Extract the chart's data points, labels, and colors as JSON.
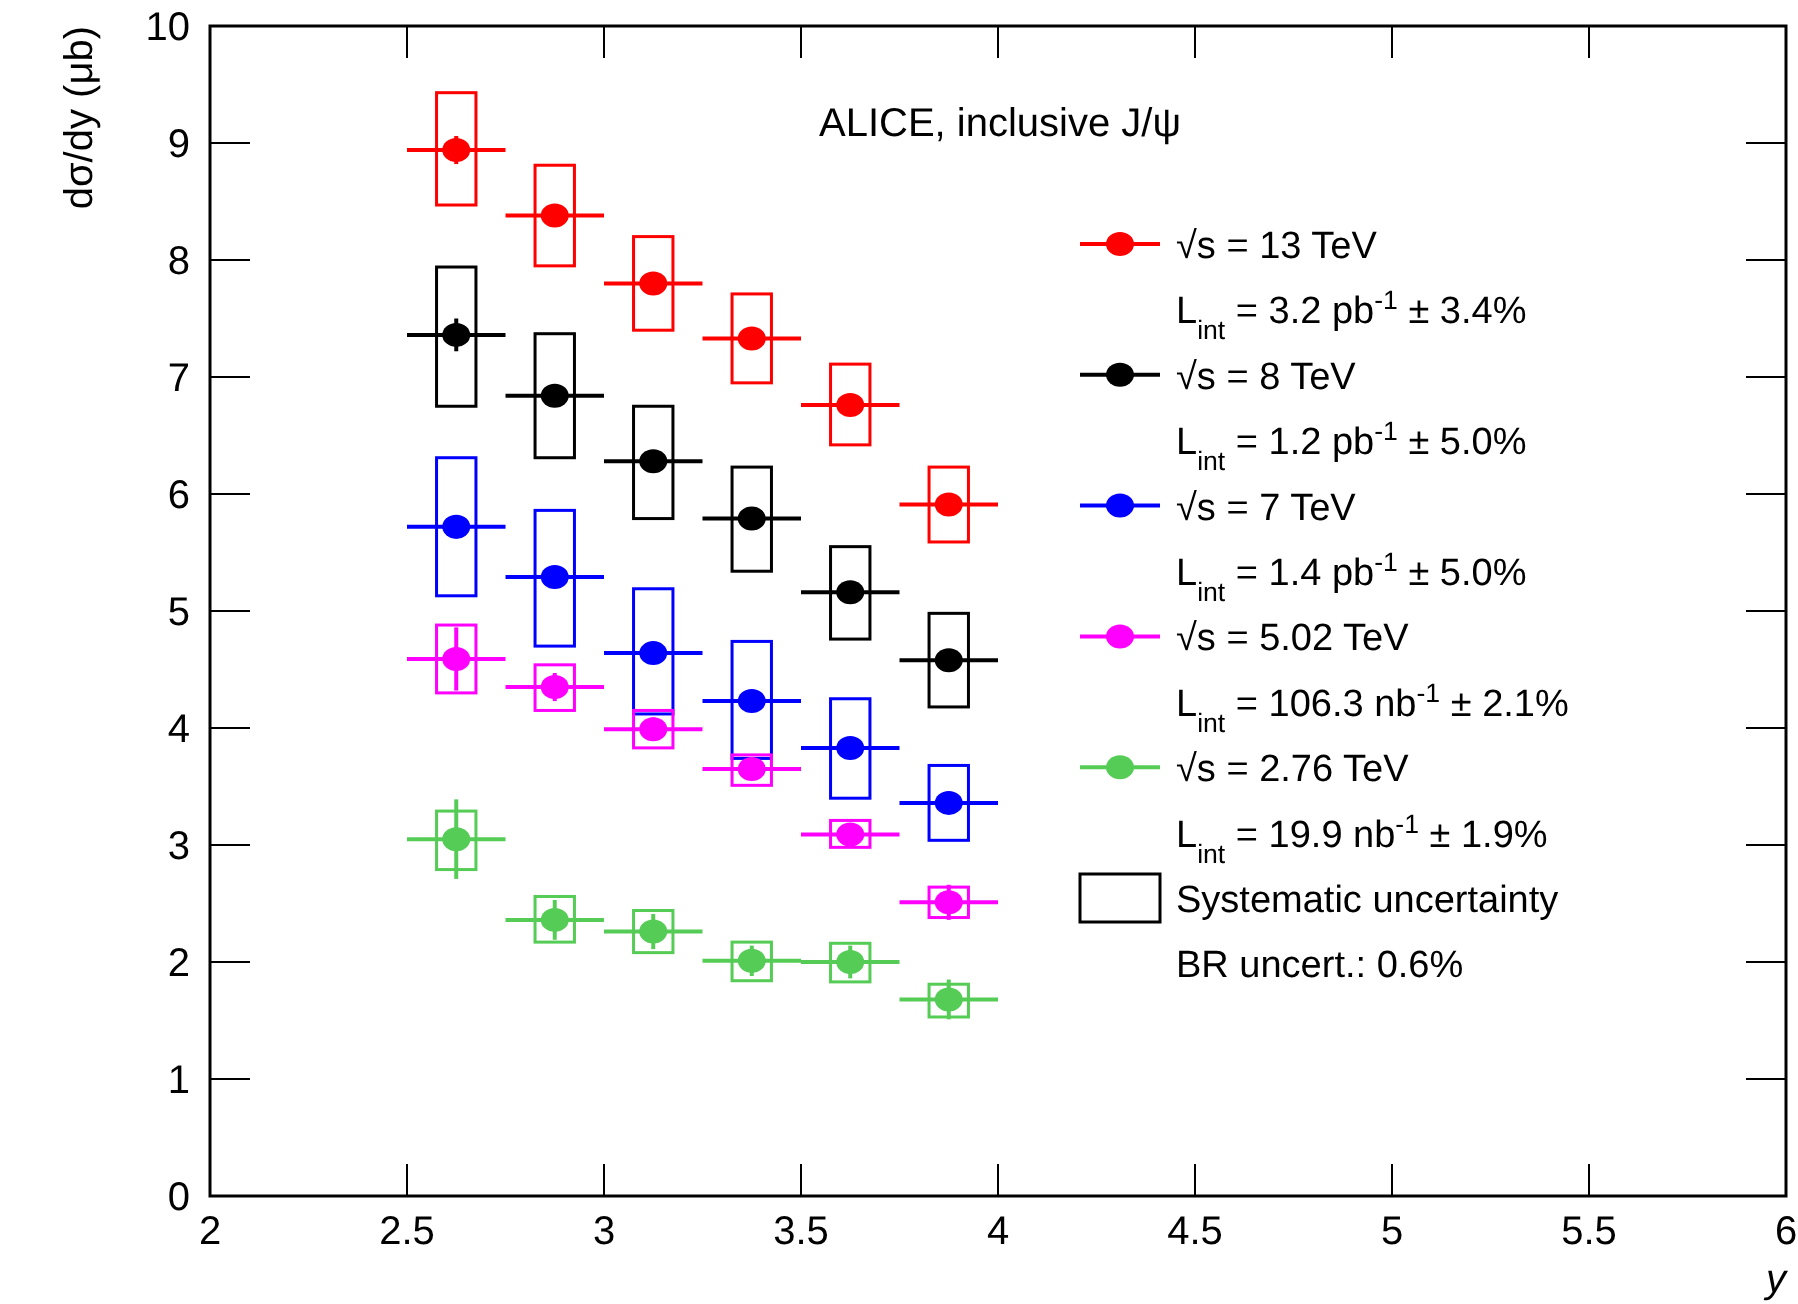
{
  "chart_data": {
    "type": "scatter",
    "title": "ALICE, inclusive J/ψ",
    "xlabel": "y",
    "ylabel": "dσ/dy (μb)",
    "xlim": [
      2,
      6
    ],
    "ylim": [
      0,
      10
    ],
    "xticks": [
      2,
      2.5,
      3,
      3.5,
      4,
      4.5,
      5,
      5.5,
      6
    ],
    "yticks": [
      0,
      1,
      2,
      3,
      4,
      5,
      6,
      7,
      8,
      9,
      10
    ],
    "grid": false,
    "legend": "right",
    "marker": "circle",
    "x": [
      2.625,
      2.875,
      3.125,
      3.375,
      3.625,
      3.875
    ],
    "series": [
      {
        "name": "√s = 13 TeV",
        "color": "#ff0000",
        "values": [
          8.94,
          8.38,
          7.8,
          7.33,
          6.76,
          5.91
        ],
        "errors": [
          0.12,
          0.06,
          0.06,
          0.05,
          0.05,
          0.05
        ],
        "xerrors": [
          0.125,
          0.125,
          0.125,
          0.125,
          0.125,
          0.125
        ]
      },
      {
        "name": "√s = 8 TeV",
        "color": "#000000",
        "values": [
          7.36,
          6.84,
          6.28,
          5.79,
          5.16,
          4.58
        ],
        "errors": [
          0.14,
          0.06,
          0.06,
          0.05,
          0.05,
          0.05
        ],
        "xerrors": [
          0.125,
          0.125,
          0.125,
          0.125,
          0.125,
          0.125
        ]
      },
      {
        "name": "√s = 7 TeV",
        "color": "#0000ff",
        "values": [
          5.72,
          5.29,
          4.64,
          4.23,
          3.83,
          3.36
        ],
        "errors": [
          0.1,
          0.06,
          0.06,
          0.05,
          0.05,
          0.05
        ],
        "xerrors": [
          0.125,
          0.125,
          0.125,
          0.125,
          0.125,
          0.125
        ]
      },
      {
        "name": "√s = 5.02 TeV",
        "color": "#ff00ff",
        "values": [
          4.59,
          4.35,
          3.99,
          3.65,
          3.09,
          2.51
        ],
        "errors": [
          0.27,
          0.12,
          0.1,
          0.08,
          0.08,
          0.15
        ],
        "xerrors": [
          0.125,
          0.125,
          0.125,
          0.125,
          0.125,
          0.125
        ]
      },
      {
        "name": "√s = 2.76 TeV",
        "color": "#55cc55",
        "values": [
          3.05,
          2.36,
          2.26,
          2.01,
          2.0,
          1.68
        ],
        "errors": [
          0.34,
          0.17,
          0.15,
          0.13,
          0.14,
          0.17
        ],
        "xerrors": [
          0.125,
          0.125,
          0.125,
          0.125,
          0.125,
          0.125
        ]
      },
      {
        "type": "bar",
        "color": "#ff0000",
        "base": [
          8.47,
          7.95,
          7.4,
          6.95,
          6.42,
          5.59
        ],
        "values": [
          0.96,
          0.86,
          0.8,
          0.76,
          0.69,
          0.64
        ]
      },
      {
        "name": "Systematic uncertainty",
        "type": "bar",
        "color": "#000000",
        "base": [
          6.75,
          6.31,
          5.79,
          5.34,
          4.76,
          4.18
        ],
        "values": [
          1.19,
          1.06,
          0.96,
          0.89,
          0.79,
          0.8
        ]
      },
      {
        "type": "bar",
        "color": "#0000ff",
        "base": [
          5.13,
          4.7,
          4.12,
          3.74,
          3.4,
          3.04
        ],
        "values": [
          1.18,
          1.16,
          1.07,
          1.0,
          0.85,
          0.64
        ]
      },
      {
        "type": "bar",
        "color": "#ff00ff",
        "base": [
          4.3,
          4.15,
          3.83,
          3.51,
          2.98,
          2.38
        ],
        "values": [
          0.58,
          0.39,
          0.32,
          0.26,
          0.23,
          0.26
        ]
      },
      {
        "type": "bar",
        "color": "#55cc55",
        "base": [
          2.79,
          2.17,
          2.08,
          1.84,
          1.83,
          1.53
        ],
        "values": [
          0.5,
          0.39,
          0.36,
          0.33,
          0.33,
          0.28
        ]
      }
    ],
    "annotations": [
      "L$_{int}$ = 3.2 pb$^{-1}$ ± 3.4%",
      "L$_{int}$ = 1.2 pb$^{-1}$ ± 5.0%",
      "L$_{int}$ = 1.4 pb$^{-1}$ ± 5.0%",
      "L$_{int}$ = 106.3 nb$^{-1}$ ± 2.1%",
      "L$_{int}$ = 19.9 nb$^{-1}$ ± 1.9%",
      "BR uncert.: 0.6%"
    ]
  }
}
